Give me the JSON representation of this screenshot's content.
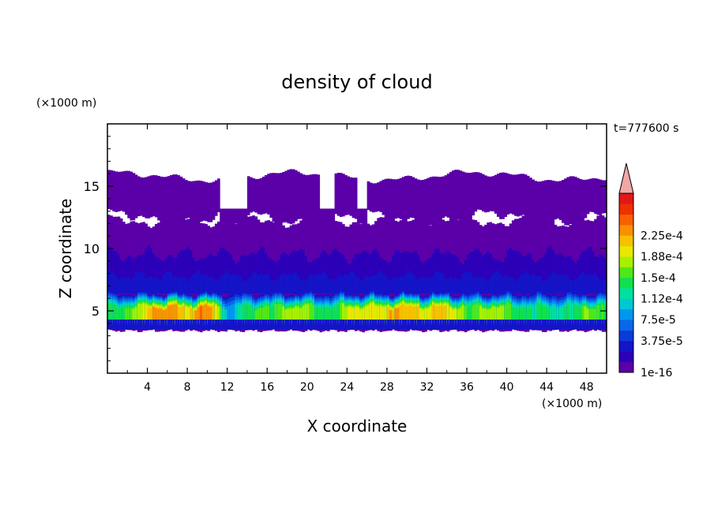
{
  "chart_data": {
    "type": "heatmap",
    "title": "density of cloud",
    "time_label": "t=777600 s",
    "xlabel": "X coordinate",
    "ylabel": "Z coordinate",
    "x_unit_label": "(×1000 m)",
    "y_unit_label": "(×1000 m)",
    "xlim": [
      0,
      50
    ],
    "ylim": [
      0,
      20
    ],
    "x_ticks": [
      4,
      8,
      12,
      16,
      20,
      24,
      28,
      32,
      36,
      40,
      44,
      48
    ],
    "y_ticks": [
      5,
      10,
      15
    ],
    "colorbar": {
      "levels": [
        "1e-16",
        "3.75e-5",
        "7.5e-5",
        "1.12e-4",
        "1.5e-4",
        "1.88e-4",
        "2.25e-4"
      ],
      "colors": [
        "#5b00a8",
        "#2a00b8",
        "#1414c8",
        "#0a3cd8",
        "#0a68e8",
        "#0096f0",
        "#00c8d2",
        "#00e0a0",
        "#10e050",
        "#50e818",
        "#a8f000",
        "#e8e800",
        "#f8c000",
        "#f89000",
        "#f86000",
        "#f03000",
        "#e01818"
      ],
      "overflow_color": "#f4a6a6"
    },
    "field": {
      "description_levels": "index into colorbar.colors",
      "columns_x": [
        0,
        2,
        4,
        6,
        8,
        10,
        12,
        14,
        16,
        18,
        20,
        22,
        24,
        26,
        28,
        30,
        32,
        34,
        36,
        38,
        40,
        42,
        44,
        46,
        48,
        50
      ],
      "low_layer_peak_level": [
        7,
        9,
        12,
        13,
        12,
        13,
        6,
        8,
        9,
        10,
        9,
        8,
        10,
        11,
        12,
        12,
        12,
        11,
        9,
        10,
        9,
        8,
        7,
        8,
        9,
        8
      ]
    }
  }
}
